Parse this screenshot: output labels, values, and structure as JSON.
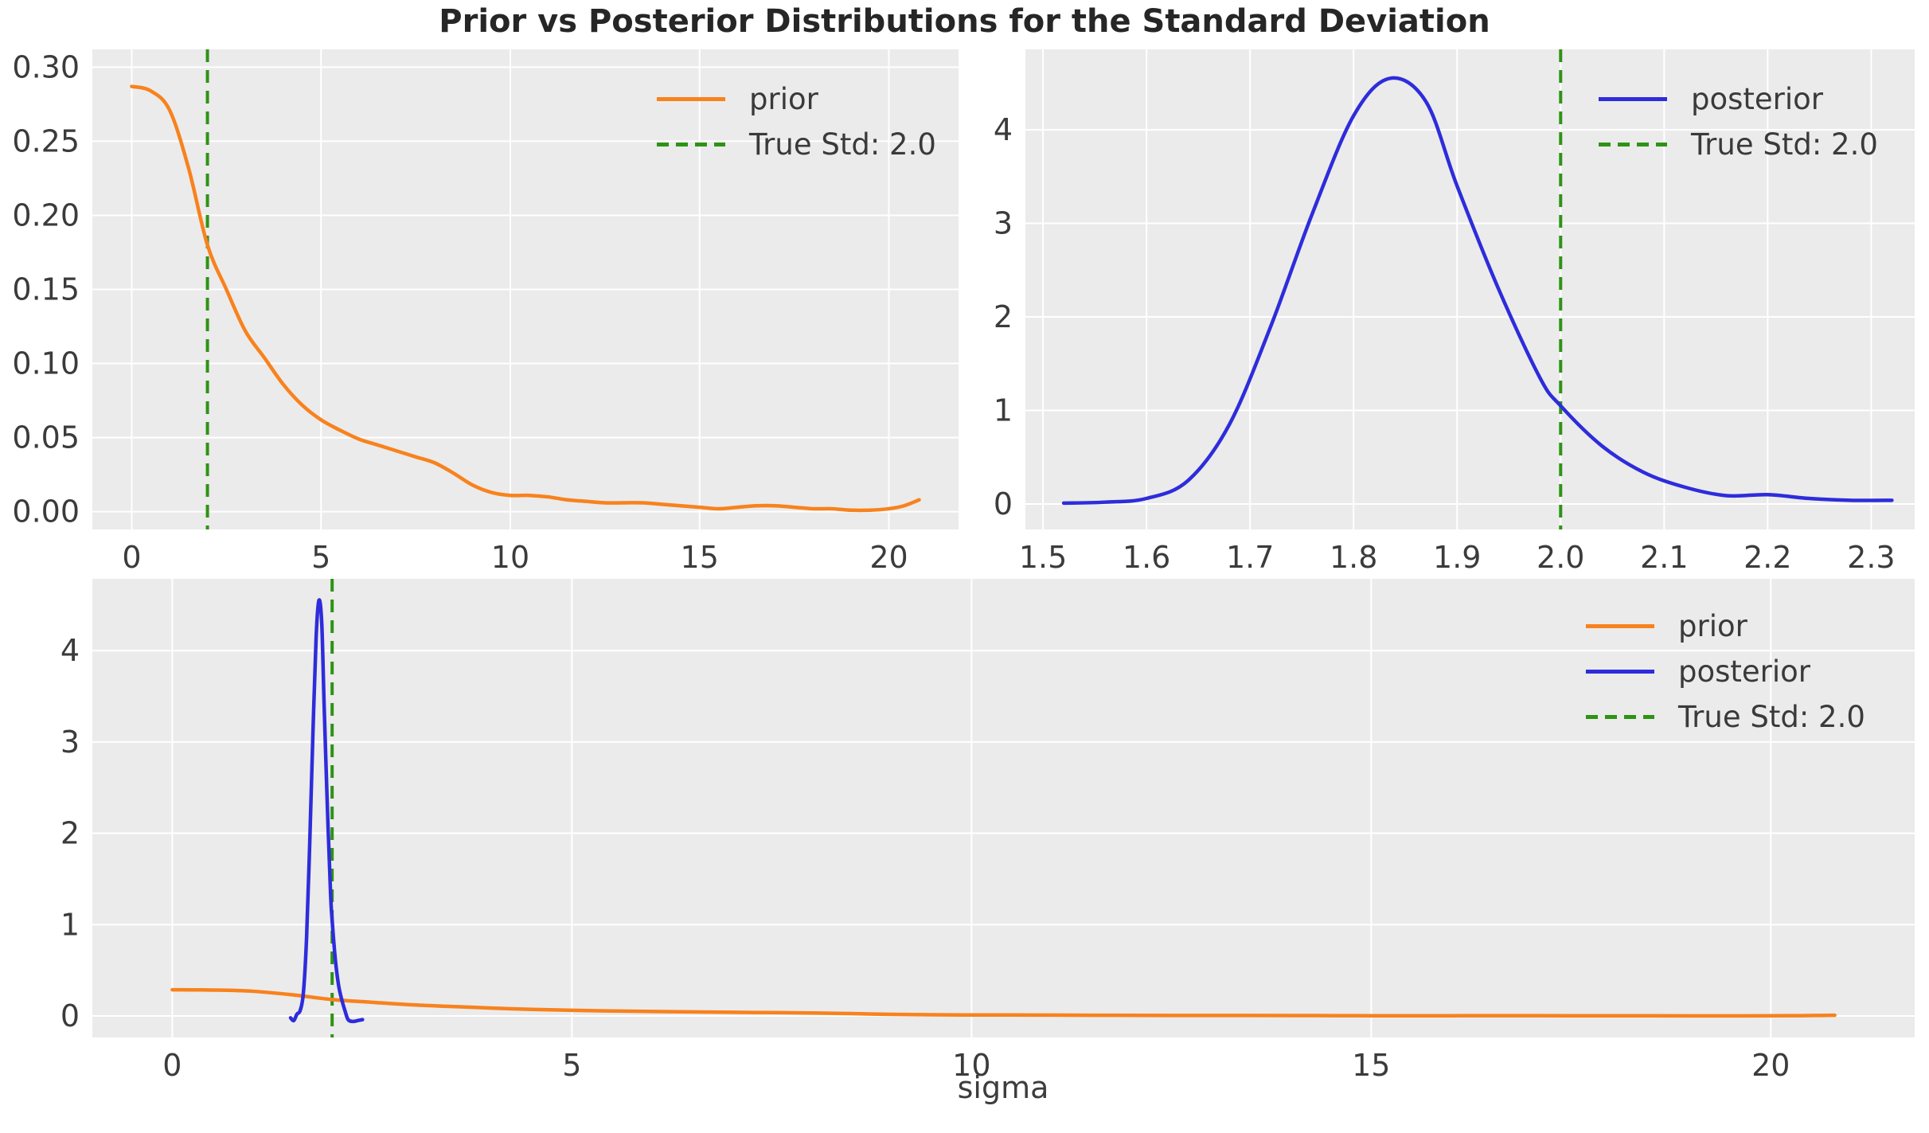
{
  "figure": {
    "title": "Prior vs Posterior Distributions for the Standard Deviation",
    "xlabel": "sigma",
    "background": "#ffffff",
    "axes_background": "#ebebeb",
    "grid_color": "#ffffff",
    "tick_color": "#3b3b3b",
    "title_color": "#262626"
  },
  "colors": {
    "prior": "#f8821d",
    "posterior": "#2e2cdb",
    "true_std": "#2e9315"
  },
  "chart_data": [
    {
      "id": "prior-plot",
      "type": "line",
      "xlim": [
        -1.04,
        21.84
      ],
      "ylim": [
        -0.012,
        0.312
      ],
      "xticks": [
        0,
        5,
        10,
        15,
        20
      ],
      "xtick_labels": [
        "0",
        "5",
        "10",
        "15",
        "20"
      ],
      "yticks": [
        0.0,
        0.05,
        0.1,
        0.15,
        0.2,
        0.25,
        0.3
      ],
      "ytick_labels": [
        "0.00",
        "0.05",
        "0.10",
        "0.15",
        "0.20",
        "0.25",
        "0.30"
      ],
      "vline": {
        "x": 2.0,
        "label": "True Std: 2.0",
        "color_key": "true_std"
      },
      "series": [
        {
          "name": "prior",
          "color_key": "prior",
          "points": [
            [
              0,
              0.287
            ],
            [
              0.5,
              0.284
            ],
            [
              1,
              0.271
            ],
            [
              1.5,
              0.232
            ],
            [
              2,
              0.18
            ],
            [
              2.5,
              0.15
            ],
            [
              3,
              0.122
            ],
            [
              3.5,
              0.104
            ],
            [
              4,
              0.086
            ],
            [
              4.5,
              0.072
            ],
            [
              5,
              0.062
            ],
            [
              5.5,
              0.055
            ],
            [
              6,
              0.049
            ],
            [
              6.5,
              0.045
            ],
            [
              7,
              0.041
            ],
            [
              7.5,
              0.037
            ],
            [
              8,
              0.033
            ],
            [
              8.5,
              0.026
            ],
            [
              9,
              0.018
            ],
            [
              9.5,
              0.013
            ],
            [
              10,
              0.011
            ],
            [
              10.5,
              0.011
            ],
            [
              11,
              0.01
            ],
            [
              11.5,
              0.008
            ],
            [
              12,
              0.007
            ],
            [
              12.5,
              0.006
            ],
            [
              13,
              0.006
            ],
            [
              13.5,
              0.006
            ],
            [
              14,
              0.005
            ],
            [
              14.5,
              0.004
            ],
            [
              15,
              0.003
            ],
            [
              15.5,
              0.002
            ],
            [
              16,
              0.003
            ],
            [
              16.5,
              0.004
            ],
            [
              17,
              0.004
            ],
            [
              17.5,
              0.003
            ],
            [
              18,
              0.002
            ],
            [
              18.5,
              0.002
            ],
            [
              19,
              0.001
            ],
            [
              19.5,
              0.001
            ],
            [
              20,
              0.002
            ],
            [
              20.4,
              0.004
            ],
            [
              20.8,
              0.008
            ]
          ]
        }
      ],
      "legend": [
        {
          "label": "prior",
          "color_key": "prior",
          "style": "solid"
        },
        {
          "label": "True Std: 2.0",
          "color_key": "true_std",
          "style": "dashed"
        }
      ]
    },
    {
      "id": "posterior-plot",
      "type": "line",
      "xlim": [
        1.483,
        2.342
      ],
      "ylim": [
        -0.272,
        4.86
      ],
      "xticks": [
        1.5,
        1.6,
        1.7,
        1.8,
        1.9,
        2.0,
        2.1,
        2.2,
        2.3
      ],
      "xtick_labels": [
        "1.5",
        "1.6",
        "1.7",
        "1.8",
        "1.9",
        "2.0",
        "2.1",
        "2.2",
        "2.3"
      ],
      "yticks": [
        0,
        1,
        2,
        3,
        4
      ],
      "ytick_labels": [
        "0",
        "1",
        "2",
        "3",
        "4"
      ],
      "vline": {
        "x": 2.0,
        "label": "True Std: 2.0",
        "color_key": "true_std"
      },
      "series": [
        {
          "name": "posterior",
          "color_key": "posterior",
          "points": [
            [
              1.52,
              0.01
            ],
            [
              1.56,
              0.02
            ],
            [
              1.6,
              0.06
            ],
            [
              1.64,
              0.25
            ],
            [
              1.68,
              0.85
            ],
            [
              1.72,
              1.9
            ],
            [
              1.76,
              3.1
            ],
            [
              1.8,
              4.15
            ],
            [
              1.835,
              4.55
            ],
            [
              1.87,
              4.3
            ],
            [
              1.9,
              3.4
            ],
            [
              1.94,
              2.3
            ],
            [
              1.98,
              1.35
            ],
            [
              2.0,
              1.05
            ],
            [
              2.04,
              0.62
            ],
            [
              2.08,
              0.34
            ],
            [
              2.12,
              0.18
            ],
            [
              2.16,
              0.09
            ],
            [
              2.2,
              0.1
            ],
            [
              2.24,
              0.06
            ],
            [
              2.28,
              0.04
            ],
            [
              2.32,
              0.04
            ]
          ]
        }
      ],
      "legend": [
        {
          "label": "posterior",
          "color_key": "posterior",
          "style": "solid"
        },
        {
          "label": "True Std: 2.0",
          "color_key": "true_std",
          "style": "dashed"
        }
      ]
    },
    {
      "id": "combined-plot",
      "type": "line",
      "xlabel": "sigma",
      "xlim": [
        -1.0,
        21.8
      ],
      "ylim": [
        -0.235,
        4.785
      ],
      "xticks": [
        0,
        5,
        10,
        15,
        20
      ],
      "xtick_labels": [
        "0",
        "5",
        "10",
        "15",
        "20"
      ],
      "yticks": [
        0,
        1,
        2,
        3,
        4
      ],
      "ytick_labels": [
        "0",
        "1",
        "2",
        "3",
        "4"
      ],
      "vline": {
        "x": 2.0,
        "label": "True Std: 2.0",
        "color_key": "true_std"
      },
      "series": [
        {
          "name": "prior",
          "color_key": "prior",
          "points": [
            [
              0,
              0.287
            ],
            [
              0.5,
              0.284
            ],
            [
              1,
              0.271
            ],
            [
              1.5,
              0.232
            ],
            [
              2,
              0.18
            ],
            [
              2.5,
              0.15
            ],
            [
              3,
              0.122
            ],
            [
              3.5,
              0.104
            ],
            [
              4,
              0.086
            ],
            [
              4.5,
              0.072
            ],
            [
              5,
              0.062
            ],
            [
              5.5,
              0.055
            ],
            [
              6,
              0.049
            ],
            [
              6.5,
              0.045
            ],
            [
              7,
              0.041
            ],
            [
              7.5,
              0.037
            ],
            [
              8,
              0.033
            ],
            [
              8.5,
              0.026
            ],
            [
              9,
              0.018
            ],
            [
              9.5,
              0.013
            ],
            [
              10,
              0.011
            ],
            [
              10.5,
              0.011
            ],
            [
              11,
              0.01
            ],
            [
              11.5,
              0.008
            ],
            [
              12,
              0.007
            ],
            [
              12.5,
              0.006
            ],
            [
              13,
              0.006
            ],
            [
              13.5,
              0.006
            ],
            [
              14,
              0.005
            ],
            [
              14.5,
              0.004
            ],
            [
              15,
              0.003
            ],
            [
              15.5,
              0.002
            ],
            [
              16,
              0.003
            ],
            [
              16.5,
              0.004
            ],
            [
              17,
              0.004
            ],
            [
              17.5,
              0.003
            ],
            [
              18,
              0.002
            ],
            [
              18.5,
              0.002
            ],
            [
              19,
              0.001
            ],
            [
              19.5,
              0.001
            ],
            [
              20,
              0.002
            ],
            [
              20.4,
              0.004
            ],
            [
              20.8,
              0.008
            ]
          ]
        },
        {
          "name": "posterior",
          "color_key": "posterior",
          "points": [
            [
              1.48,
              -0.02
            ],
            [
              1.52,
              -0.05
            ],
            [
              1.56,
              0.02
            ],
            [
              1.6,
              0.06
            ],
            [
              1.64,
              0.25
            ],
            [
              1.68,
              0.85
            ],
            [
              1.72,
              1.9
            ],
            [
              1.76,
              3.1
            ],
            [
              1.8,
              4.15
            ],
            [
              1.835,
              4.55
            ],
            [
              1.87,
              4.3
            ],
            [
              1.9,
              3.4
            ],
            [
              1.94,
              2.3
            ],
            [
              1.98,
              1.35
            ],
            [
              2.0,
              1.05
            ],
            [
              2.04,
              0.62
            ],
            [
              2.08,
              0.34
            ],
            [
              2.12,
              0.18
            ],
            [
              2.16,
              0.06
            ],
            [
              2.2,
              -0.04
            ],
            [
              2.26,
              -0.06
            ],
            [
              2.32,
              -0.05
            ],
            [
              2.38,
              -0.04
            ]
          ]
        }
      ],
      "legend": [
        {
          "label": "prior",
          "color_key": "prior",
          "style": "solid"
        },
        {
          "label": "posterior",
          "color_key": "posterior",
          "style": "solid"
        },
        {
          "label": "True Std: 2.0",
          "color_key": "true_std",
          "style": "dashed"
        }
      ]
    }
  ]
}
